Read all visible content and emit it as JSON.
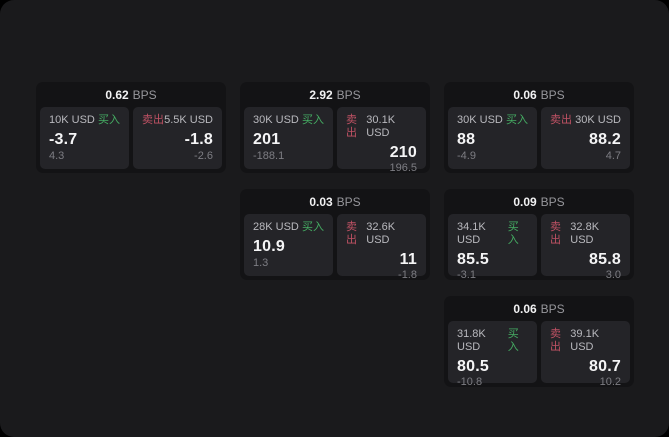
{
  "labels": {
    "bps_unit": "BPS",
    "buy": "买入",
    "sell": "卖出"
  },
  "colors": {
    "background": "#000000",
    "surface": "#1a1a1c",
    "card": "#131315",
    "panel": "#242428",
    "buy_green": "#45ad63",
    "sell_red": "#c05264",
    "value_white": "#f5f5f6",
    "muted_gray": "#7d7d83"
  },
  "cards": [
    {
      "bps": "0.62",
      "buy": {
        "size": "10K USD",
        "value": "-3.7",
        "sub": "4.3"
      },
      "sell": {
        "size": "5.5K USD",
        "value": "-1.8",
        "sub": "-2.6"
      }
    },
    {
      "bps": "2.92",
      "buy": {
        "size": "30K USD",
        "value": "201",
        "sub": "-188.1"
      },
      "sell": {
        "size": "30.1K USD",
        "value": "210",
        "sub": "196.5"
      }
    },
    {
      "bps": "0.06",
      "buy": {
        "size": "30K USD",
        "value": "88",
        "sub": "-4.9"
      },
      "sell": {
        "size": "30K USD",
        "value": "88.2",
        "sub": "4.7"
      }
    },
    {
      "bps": "0.03",
      "buy": {
        "size": "28K USD",
        "value": "10.9",
        "sub": "1.3"
      },
      "sell": {
        "size": "32.6K USD",
        "value": "11",
        "sub": "-1.8"
      }
    },
    {
      "bps": "0.09",
      "buy": {
        "size": "34.1K USD",
        "value": "85.5",
        "sub": "-3.1"
      },
      "sell": {
        "size": "32.8K USD",
        "value": "85.8",
        "sub": "3.0"
      }
    },
    {
      "bps": "0.06",
      "buy": {
        "size": "31.8K USD",
        "value": "80.5",
        "sub": "-10.8"
      },
      "sell": {
        "size": "39.1K USD",
        "value": "80.7",
        "sub": "10.2"
      }
    }
  ]
}
